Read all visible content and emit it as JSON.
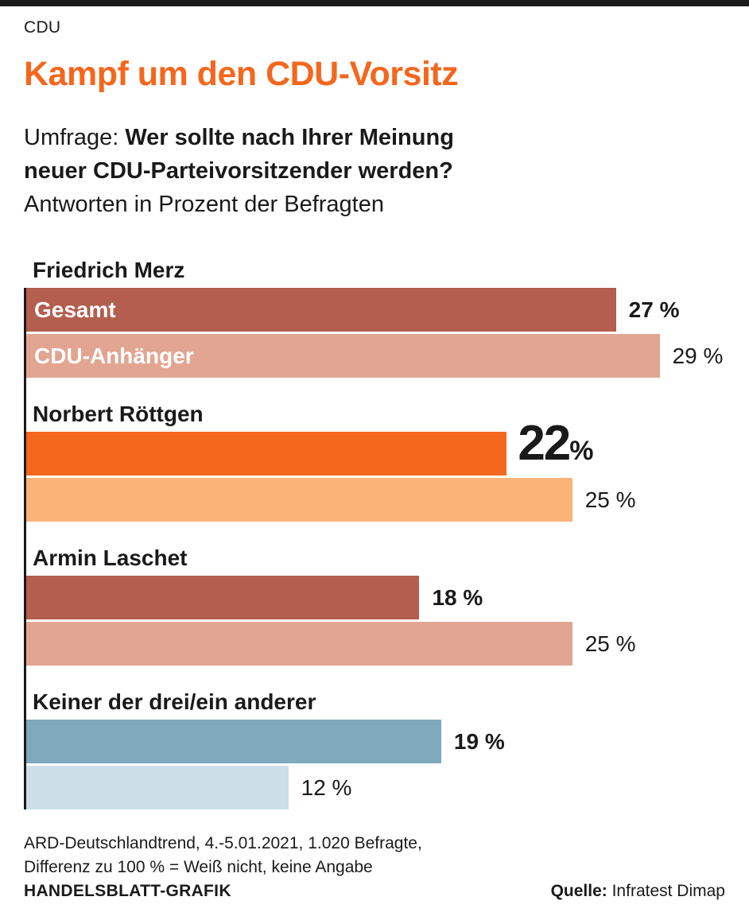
{
  "page": {
    "kicker": "CDU",
    "title": "Kampf um den CDU-Vorsitz",
    "question_prefix": "Umfrage: ",
    "question_line1": "Wer sollte nach Ihrer Meinung",
    "question_line2": "neuer CDU-Parteivorsitzender werden?",
    "subtitle": "Antworten in Prozent der Befragten"
  },
  "colors": {
    "accent_orange": "#f4671d",
    "light_orange": "#fbb377",
    "dark_red": "#b35e4e",
    "light_red": "#e2a592",
    "blue": "#7fa9bd",
    "light_blue": "#cbdfe8",
    "black": "#1a1a1a"
  },
  "chart_data": {
    "type": "bar",
    "orientation": "horizontal",
    "title": "Kampf um den CDU-Vorsitz",
    "subtitle": "Umfrage: Wer sollte nach Ihrer Meinung neuer CDU-Parteivorsitzender werden?",
    "unit_note": "Antworten in Prozent der Befragten",
    "categories": [
      "Friedrich Merz",
      "Norbert Röttgen",
      "Armin Laschet",
      "Keiner der drei/ein anderer"
    ],
    "series": [
      {
        "name": "Gesamt",
        "values": [
          27,
          22,
          18,
          19
        ]
      },
      {
        "name": "CDU-Anhänger",
        "values": [
          29,
          25,
          25,
          12
        ]
      }
    ],
    "xlim": [
      0,
      32
    ],
    "grid": false,
    "legend_position": "inside-first-bars",
    "highlight": {
      "category": "Norbert Röttgen",
      "series": "Gesamt",
      "value": 22
    },
    "groups": [
      {
        "name": "Friedrich Merz",
        "bars": [
          {
            "series": "Gesamt",
            "value": 27,
            "color": "#b35e4e",
            "inner_label": "Gesamt",
            "label": "27 %"
          },
          {
            "series": "CDU-Anhänger",
            "value": 29,
            "color": "#e2a592",
            "inner_label": "CDU-Anhänger",
            "label": "29 %"
          }
        ]
      },
      {
        "name": "Norbert Röttgen",
        "bars": [
          {
            "series": "Gesamt",
            "value": 22,
            "color": "#f4671d",
            "big_number": "22",
            "big_percent": "%"
          },
          {
            "series": "CDU-Anhänger",
            "value": 25,
            "color": "#fbb377",
            "label": "25 %"
          }
        ]
      },
      {
        "name": "Armin Laschet",
        "bars": [
          {
            "series": "Gesamt",
            "value": 18,
            "color": "#b35e4e",
            "label": "18 %"
          },
          {
            "series": "CDU-Anhänger",
            "value": 25,
            "color": "#e2a592",
            "label": "25 %"
          }
        ]
      },
      {
        "name": "Keiner der drei/ein anderer",
        "bars": [
          {
            "series": "Gesamt",
            "value": 19,
            "color": "#7fa9bd",
            "label": "19 %"
          },
          {
            "series": "CDU-Anhänger",
            "value": 12,
            "color": "#cbdfe8",
            "label": "12 %"
          }
        ]
      }
    ]
  },
  "footer": {
    "note_line1": "ARD-Deutschlandtrend, 4.-5.01.2021, 1.020 Befragte,",
    "note_line2": "Differenz zu 100 % = Weiß nicht, keine Angabe",
    "credit": "HANDELSBLATT-GRAFIK",
    "source_label": "Quelle:",
    "source_value": " Infratest Dimap"
  }
}
